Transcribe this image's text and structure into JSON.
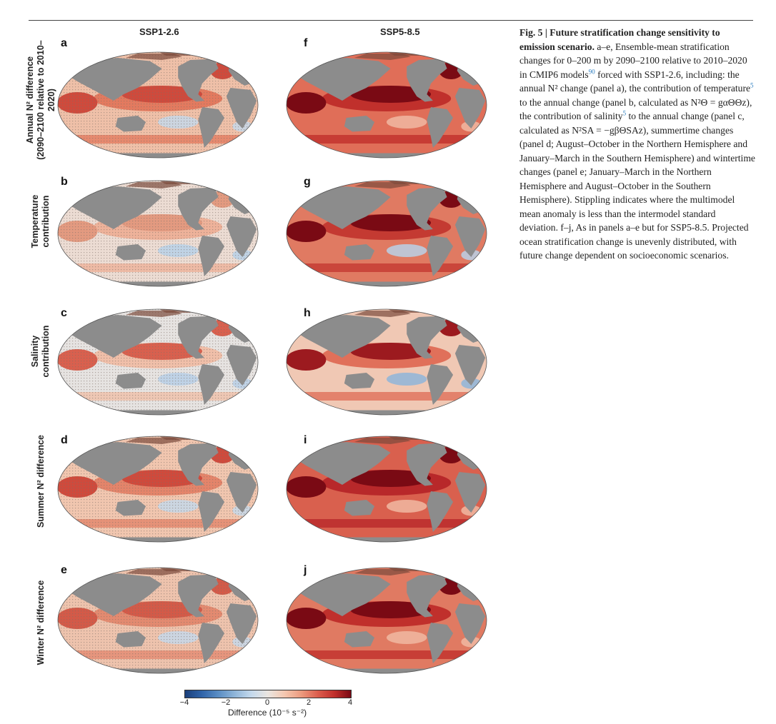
{
  "columns": {
    "left": "SSP1-2.6",
    "right": "SSP5-8.5"
  },
  "rows": [
    {
      "label_line1": "Annual N² difference",
      "label_line2": "(2090–2100 relative to 2010–2020)",
      "left_letter": "a",
      "right_letter": "f"
    },
    {
      "label_line1": "Temperature",
      "label_line2": "contribution",
      "left_letter": "b",
      "right_letter": "g"
    },
    {
      "label_line1": "Salinity",
      "label_line2": "contribution",
      "left_letter": "c",
      "right_letter": "h"
    },
    {
      "label_line1": "Summer N² difference",
      "label_line2": "",
      "left_letter": "d",
      "right_letter": "i"
    },
    {
      "label_line1": "Winter N² difference",
      "label_line2": "",
      "left_letter": "e",
      "right_letter": "j"
    }
  ],
  "colorbar": {
    "label": "Difference (10⁻⁵ s⁻²)",
    "ticks": [
      "−4",
      "−2",
      "0",
      "2",
      "4"
    ],
    "range": [
      -4,
      4
    ],
    "colors": [
      "#1b3f7a",
      "#2f63a8",
      "#5a8dc4",
      "#8fb5d9",
      "#c4d9ec",
      "#eae5e0",
      "#f4c7b0",
      "#ec9b7f",
      "#dc5e4e",
      "#c0302c",
      "#7a0a14"
    ]
  },
  "map_colors": {
    "land": "#8c8c8c",
    "sea_ice": "#ffffff"
  },
  "caption": {
    "fig": "Fig. 5 | Future stratification change sensitivity to emission scenario.",
    "p1": " a–e, Ensemble-mean stratification changes for 0–200 m by 2090–2100 relative to 2010–2020 in CMIP6 models",
    "ref90": "90",
    "p2": " forced with SSP1-2.6, including: the annual N² change (panel a), the contribution of temperature",
    "ref5a": "5",
    "p3": " to the annual change (panel b, calculated as N²Θ = gαΘΘz), the contribution of salinity",
    "ref5b": "5",
    "p4": " to the annual change (panel c, calculated as N²SA = −gβΘSAz), summertime changes (panel d; August–October in the Northern Hemisphere and January–March in the Southern Hemisphere) and wintertime changes (panel e; January–March in the Northern Hemisphere and August–October in the Southern Hemisphere). Stippling indicates where the multimodel mean anomaly is less than the intermodel standard deviation. f–j, As in panels a–e but for SSP5-8.5. Projected ocean stratification change is unevenly distributed, with future change dependent on socioeconomic scenarios."
  },
  "panels": [
    {
      "id": "a",
      "ocean": "#efc0a8",
      "warm": "#e37a5f",
      "hot": "#cf4a3c",
      "cool": "#c6d8ea",
      "stipple": true
    },
    {
      "id": "b",
      "ocean": "#ecdcd3",
      "warm": "#eeb29a",
      "hot": "#e39a80",
      "cool": "#b9d1e8",
      "stipple": true
    },
    {
      "id": "c",
      "ocean": "#e6e3e1",
      "warm": "#f0bfa9",
      "hot": "#d9604e",
      "cool": "#b7cfe6",
      "stipple": true
    },
    {
      "id": "d",
      "ocean": "#f1c6af",
      "warm": "#e4846a",
      "hot": "#cf4a3c",
      "cool": "#c6d8ea",
      "stipple": true
    },
    {
      "id": "e",
      "ocean": "#eec3ad",
      "warm": "#e38a70",
      "hot": "#d35a48",
      "cool": "#c6d8ea",
      "stipple": true
    },
    {
      "id": "f",
      "ocean": "#e06e58",
      "warm": "#c0302c",
      "hot": "#7a0a14",
      "cool": "#f0b9a2",
      "stipple": false
    },
    {
      "id": "g",
      "ocean": "#e07a62",
      "warm": "#c43a32",
      "hot": "#7a0a14",
      "cool": "#b9d1e8",
      "stipple": false
    },
    {
      "id": "h",
      "ocean": "#f0c8b4",
      "warm": "#e0705a",
      "hot": "#9c1a1f",
      "cool": "#8fb5d9",
      "stipple": false
    },
    {
      "id": "i",
      "ocean": "#d9604e",
      "warm": "#b8282a",
      "hot": "#7a0a14",
      "cool": "#f0b9a2",
      "stipple": false
    },
    {
      "id": "j",
      "ocean": "#e07a62",
      "warm": "#c0302c",
      "hot": "#7a0a14",
      "cool": "#f0b9a2",
      "stipple": false
    }
  ]
}
